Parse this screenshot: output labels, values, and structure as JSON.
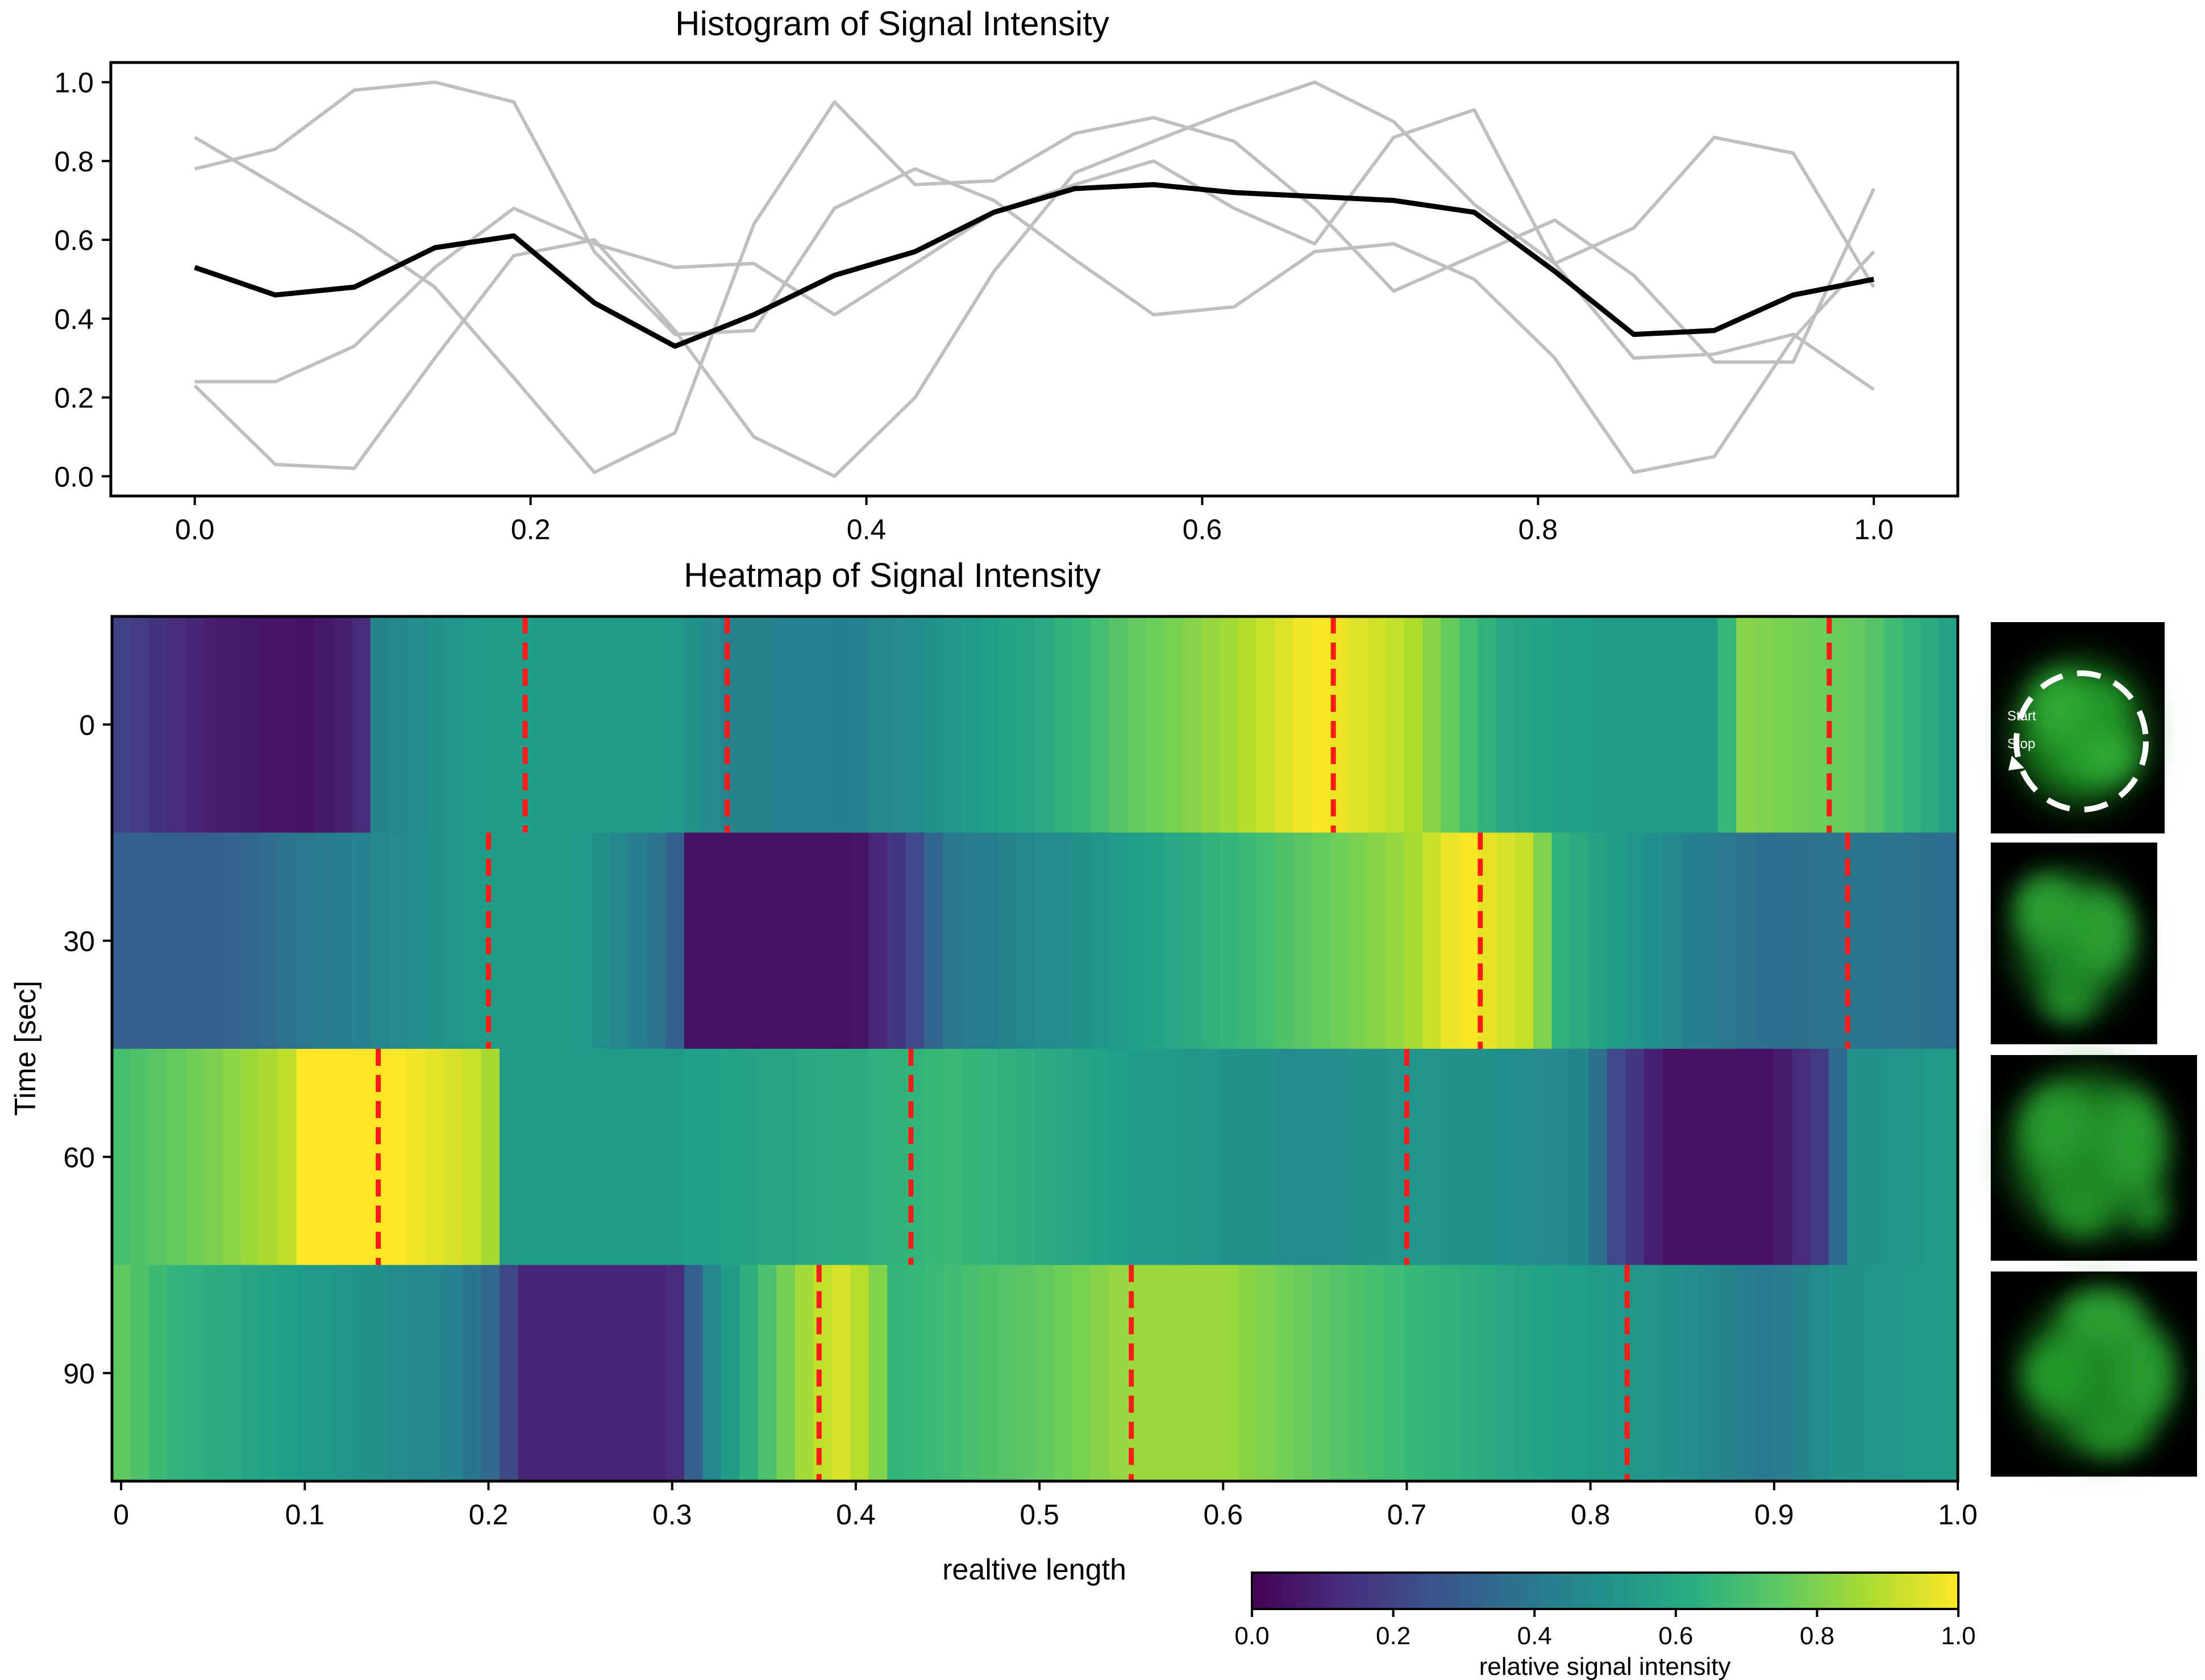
{
  "chart_data": [
    {
      "type": "line",
      "title": "Histogram of Signal Intensity",
      "xlabel": "",
      "ylabel": "",
      "xlim": [
        -0.05,
        1.05
      ],
      "ylim": [
        -0.05,
        1.05
      ],
      "xticks": [
        "0.0",
        "0.2",
        "0.4",
        "0.6",
        "0.8",
        "1.0"
      ],
      "yticks": [
        "0.0",
        "0.2",
        "0.4",
        "0.6",
        "0.8",
        "1.0"
      ],
      "x": [
        0.0,
        0.048,
        0.095,
        0.143,
        0.19,
        0.238,
        0.286,
        0.333,
        0.381,
        0.429,
        0.476,
        0.524,
        0.571,
        0.619,
        0.667,
        0.714,
        0.762,
        0.81,
        0.857,
        0.905,
        0.952,
        1.0
      ],
      "series": [
        {
          "name": "gray-1",
          "color": "#bfbfbf",
          "values": [
            0.86,
            0.74,
            0.62,
            0.48,
            0.25,
            0.01,
            0.11,
            0.64,
            0.95,
            0.74,
            0.75,
            0.87,
            0.91,
            0.85,
            0.68,
            0.47,
            0.56,
            0.65,
            0.51,
            0.29,
            0.29,
            0.73
          ]
        },
        {
          "name": "gray-2",
          "color": "#bfbfbf",
          "values": [
            0.78,
            0.83,
            0.98,
            1.0,
            0.95,
            0.57,
            0.36,
            0.37,
            0.68,
            0.78,
            0.7,
            0.55,
            0.41,
            0.43,
            0.57,
            0.59,
            0.5,
            0.3,
            0.01,
            0.05,
            0.35,
            0.57
          ]
        },
        {
          "name": "gray-3",
          "color": "#bfbfbf",
          "values": [
            0.24,
            0.24,
            0.33,
            0.53,
            0.68,
            0.59,
            0.53,
            0.54,
            0.41,
            0.54,
            0.67,
            0.74,
            0.8,
            0.68,
            0.59,
            0.86,
            0.93,
            0.54,
            0.3,
            0.31,
            0.36,
            0.22
          ]
        },
        {
          "name": "gray-4",
          "color": "#bfbfbf",
          "values": [
            0.23,
            0.03,
            0.02,
            0.3,
            0.56,
            0.6,
            0.37,
            0.1,
            0.0,
            0.2,
            0.52,
            0.77,
            0.85,
            0.93,
            1.0,
            0.9,
            0.69,
            0.54,
            0.63,
            0.86,
            0.82,
            0.48
          ]
        },
        {
          "name": "mean",
          "color": "#000000",
          "values": [
            0.53,
            0.46,
            0.48,
            0.58,
            0.61,
            0.44,
            0.33,
            0.41,
            0.51,
            0.57,
            0.67,
            0.73,
            0.74,
            0.72,
            0.71,
            0.7,
            0.67,
            0.52,
            0.36,
            0.37,
            0.46,
            0.5
          ]
        }
      ]
    },
    {
      "type": "heatmap",
      "title": "Heatmap of Signal Intensity",
      "xlabel": "realtive length",
      "ylabel": "Time [sec]",
      "xlim": [
        -0.005,
        1.0
      ],
      "xticks": [
        "0",
        "0.1",
        "0.2",
        "0.3",
        "0.4",
        "0.5",
        "0.6",
        "0.7",
        "0.8",
        "0.9",
        "1.0"
      ],
      "yticks": [
        "0",
        "30",
        "60",
        "90"
      ],
      "colormap": "viridis",
      "colorbar": {
        "label": "relative signal intensity",
        "ticks": [
          "0.0",
          "0.2",
          "0.4",
          "0.6",
          "0.8",
          "1.0"
        ],
        "range": [
          0.0,
          1.0
        ]
      },
      "rows": [
        {
          "time": 0,
          "x": [
            0.0,
            0.05,
            0.1,
            0.13,
            0.14,
            0.2,
            0.3,
            0.33,
            0.4,
            0.5,
            0.55,
            0.6,
            0.65,
            0.7,
            0.75,
            0.8,
            0.87,
            0.88,
            0.95,
            1.0
          ],
          "v": [
            0.2,
            0.08,
            0.05,
            0.1,
            0.45,
            0.55,
            0.55,
            0.45,
            0.44,
            0.6,
            0.75,
            0.85,
            1.0,
            0.9,
            0.6,
            0.55,
            0.55,
            0.82,
            0.75,
            0.55
          ],
          "markers": [
            0.22,
            0.33,
            0.66,
            0.93
          ]
        },
        {
          "time": 30,
          "x": [
            0.0,
            0.05,
            0.08,
            0.1,
            0.2,
            0.25,
            0.3,
            0.31,
            0.4,
            0.43,
            0.45,
            0.55,
            0.65,
            0.7,
            0.73,
            0.77,
            0.78,
            0.85,
            0.9,
            0.95,
            1.0
          ],
          "v": [
            0.3,
            0.3,
            0.35,
            0.4,
            0.55,
            0.55,
            0.35,
            0.05,
            0.05,
            0.2,
            0.4,
            0.55,
            0.75,
            0.85,
            1.0,
            0.9,
            0.65,
            0.45,
            0.35,
            0.4,
            0.35
          ],
          "markers": [
            0.2,
            0.74,
            0.94
          ]
        },
        {
          "time": 60,
          "x": [
            0.0,
            0.05,
            0.09,
            0.1,
            0.15,
            0.2,
            0.21,
            0.3,
            0.4,
            0.45,
            0.55,
            0.65,
            0.7,
            0.75,
            0.8,
            0.81,
            0.84,
            0.9,
            0.93,
            0.94,
            1.0
          ],
          "v": [
            0.7,
            0.8,
            0.9,
            1.0,
            1.0,
            0.9,
            0.55,
            0.55,
            0.62,
            0.68,
            0.55,
            0.48,
            0.52,
            0.5,
            0.45,
            0.25,
            0.05,
            0.05,
            0.2,
            0.5,
            0.55
          ],
          "markers": [
            0.14,
            0.43,
            0.7
          ]
        },
        {
          "time": 90,
          "x": [
            0.0,
            0.03,
            0.1,
            0.18,
            0.2,
            0.22,
            0.3,
            0.32,
            0.35,
            0.37,
            0.39,
            0.41,
            0.42,
            0.5,
            0.55,
            0.6,
            0.65,
            0.75,
            0.85,
            0.9,
            0.93,
            1.0
          ],
          "v": [
            0.75,
            0.65,
            0.55,
            0.45,
            0.35,
            0.1,
            0.1,
            0.45,
            0.7,
            0.85,
            0.95,
            0.85,
            0.65,
            0.75,
            0.85,
            0.85,
            0.75,
            0.6,
            0.5,
            0.4,
            0.5,
            0.55
          ],
          "markers": [
            0.38,
            0.55,
            0.82
          ]
        }
      ]
    }
  ],
  "inset": {
    "start_label": "Start",
    "stop_label": "Stop"
  }
}
